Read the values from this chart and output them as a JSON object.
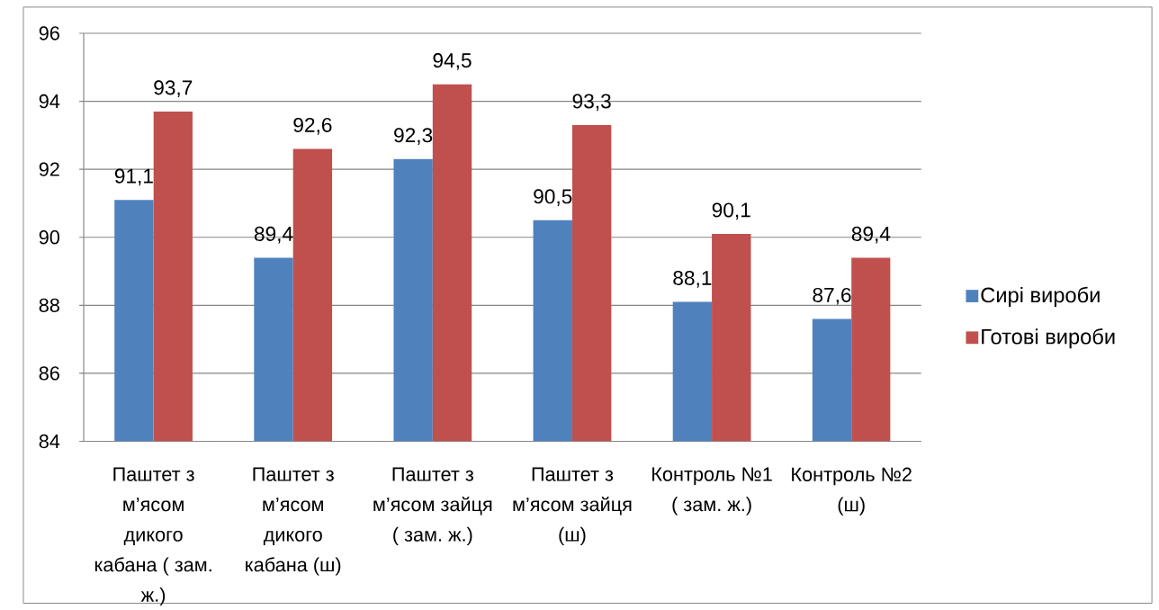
{
  "chart_data": {
    "type": "bar",
    "categories": [
      "Паштет з м’ясом дикого кабана ( зам. ж.)",
      "Паштет з м’ясом дикого кабана (ш)",
      "Паштет з м’ясом зайця ( зам. ж.)",
      "Паштет з м’ясом зайця (ш)",
      "Контроль №1 ( зам. ж.)",
      "Контроль №2 (ш)"
    ],
    "series": [
      {
        "name": "Сирі вироби",
        "color": "#4f81bd",
        "values": [
          91.1,
          89.4,
          92.3,
          90.5,
          88.1,
          87.6
        ],
        "value_labels": [
          "91,1",
          "89,4",
          "92,3",
          "90,5",
          "88,1",
          "87,6"
        ]
      },
      {
        "name": "Готові вироби",
        "color": "#c0504d",
        "values": [
          93.7,
          92.6,
          94.5,
          93.3,
          90.1,
          89.4
        ],
        "value_labels": [
          "93,7",
          "92,6",
          "94,5",
          "93,3",
          "90,1",
          "89,4"
        ]
      }
    ],
    "ylim": [
      84,
      96
    ],
    "yticks": [
      84,
      86,
      88,
      90,
      92,
      94,
      96
    ],
    "grid": "y",
    "legend": "right"
  }
}
